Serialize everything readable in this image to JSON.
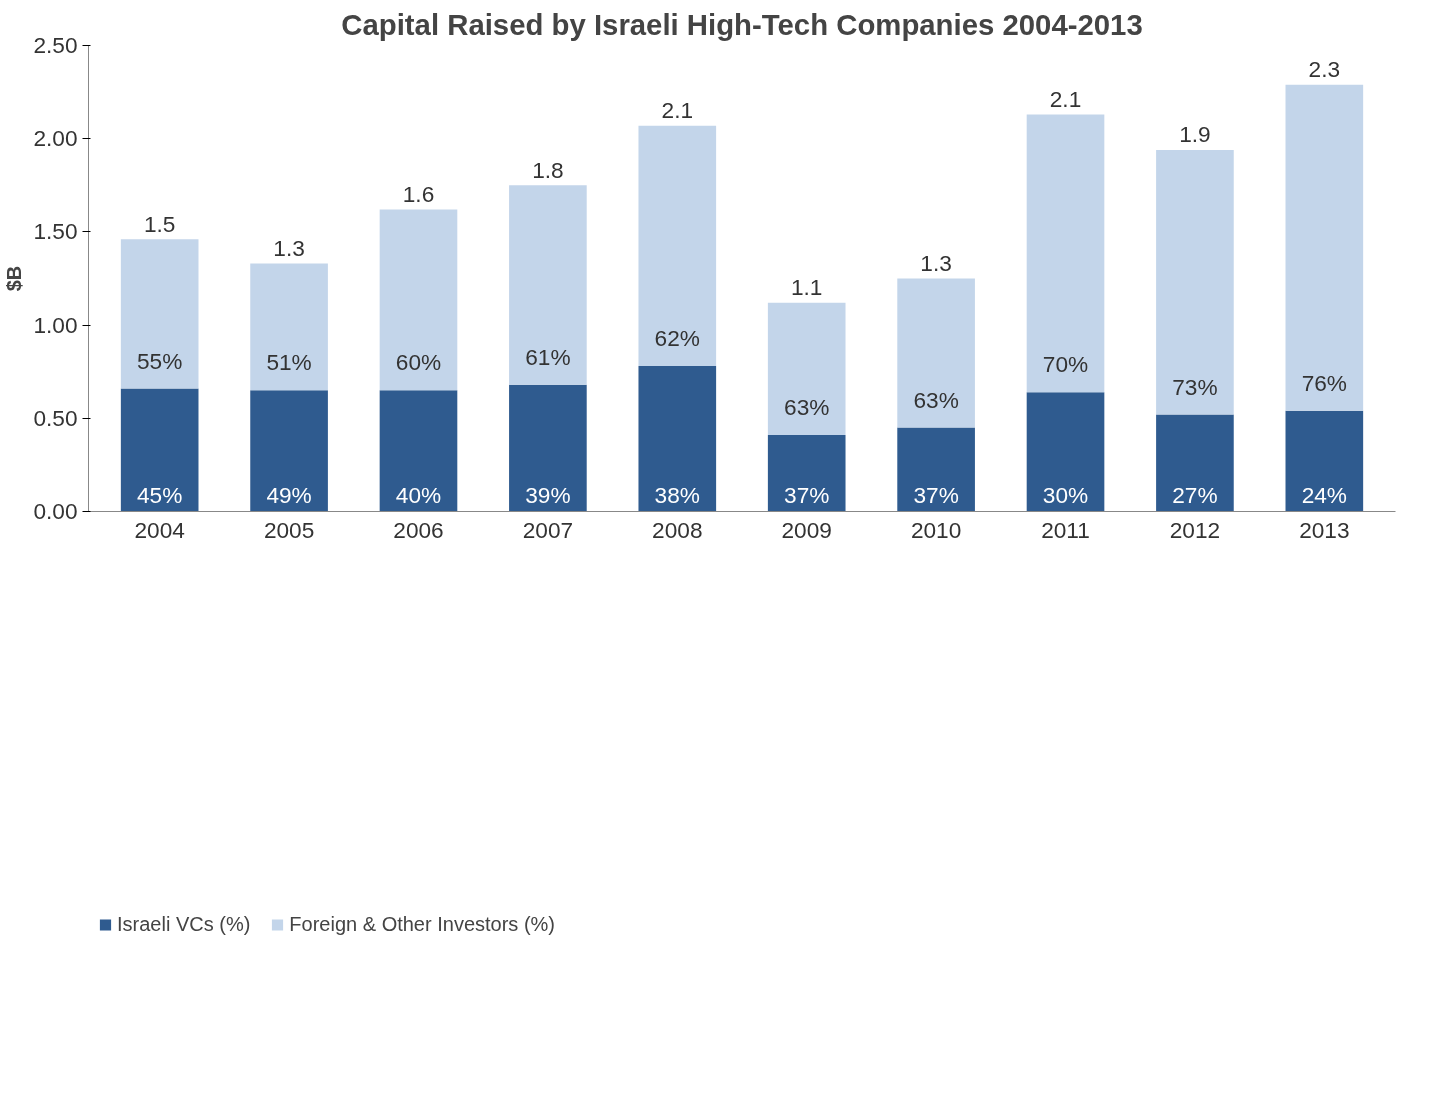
{
  "chart_data": {
    "type": "bar",
    "stacked": true,
    "title": "Capital Raised by Israeli High-Tech Companies 2004-2013",
    "ylabel": "$B",
    "categories": [
      "2004",
      "2005",
      "2006",
      "2007",
      "2008",
      "2009",
      "2010",
      "2011",
      "2012",
      "2013"
    ],
    "series": [
      {
        "name": "Israeli VCs (%)",
        "color": "#2f5b8f",
        "values": [
          0.66,
          0.65,
          0.65,
          0.68,
          0.78,
          0.41,
          0.45,
          0.64,
          0.52,
          0.54
        ]
      },
      {
        "name": "Foreign & Other Investors (%)",
        "color": "#c3d5ea",
        "values": [
          0.8,
          0.68,
          0.97,
          1.07,
          1.29,
          0.71,
          0.8,
          1.49,
          1.42,
          1.75
        ]
      }
    ],
    "annotations": [
      {
        "text": "45%",
        "x": "2004",
        "y": 0
      },
      {
        "text": "49%",
        "x": "2005",
        "y": 0
      },
      {
        "text": "40%",
        "x": "2006",
        "y": 0
      },
      {
        "text": "39%",
        "x": "2007",
        "y": 0
      },
      {
        "text": "38%",
        "x": "2008",
        "y": 0
      },
      {
        "text": "37%",
        "x": "2009",
        "y": 0
      },
      {
        "text": "37%",
        "x": "2010",
        "y": 0
      },
      {
        "text": "30%",
        "x": "2011",
        "y": 0
      },
      {
        "text": "27%",
        "x": "2012",
        "y": 0
      },
      {
        "text": "24%",
        "x": "2013",
        "y": 0
      },
      {
        "text": "55%",
        "x": "2004",
        "y": 0.66
      },
      {
        "text": "51%",
        "x": "2005",
        "y": 0.65
      },
      {
        "text": "60%",
        "x": "2006",
        "y": 0.65
      },
      {
        "text": "61%",
        "x": "2007",
        "y": 0.68
      },
      {
        "text": "62%",
        "x": "2008",
        "y": 0.78
      },
      {
        "text": "63%",
        "x": "2009",
        "y": 0.41
      },
      {
        "text": "63%",
        "x": "2010",
        "y": 0.45
      },
      {
        "text": "70%",
        "x": "2011",
        "y": 0.64
      },
      {
        "text": "73%",
        "x": "2012",
        "y": 0.52
      },
      {
        "text": "76%",
        "x": "2013",
        "y": 0.54
      }
    ],
    "totals": [
      "1.5",
      "1.3",
      "1.6",
      "1.8",
      "2.1",
      "1.1",
      "1.3",
      "2.1",
      "1.9",
      "2.3"
    ],
    "ylim": [
      0,
      2.5
    ],
    "yticks": [
      {
        "value": 0,
        "label": "0.00"
      },
      {
        "value": 0.5,
        "label": "0.50"
      },
      {
        "value": 1,
        "label": "1.00"
      },
      {
        "value": 1.5,
        "label": "1.50"
      },
      {
        "value": 2,
        "label": "2.00"
      },
      {
        "value": 2.5,
        "label": "2.50"
      }
    ],
    "legend": "bottom left"
  }
}
